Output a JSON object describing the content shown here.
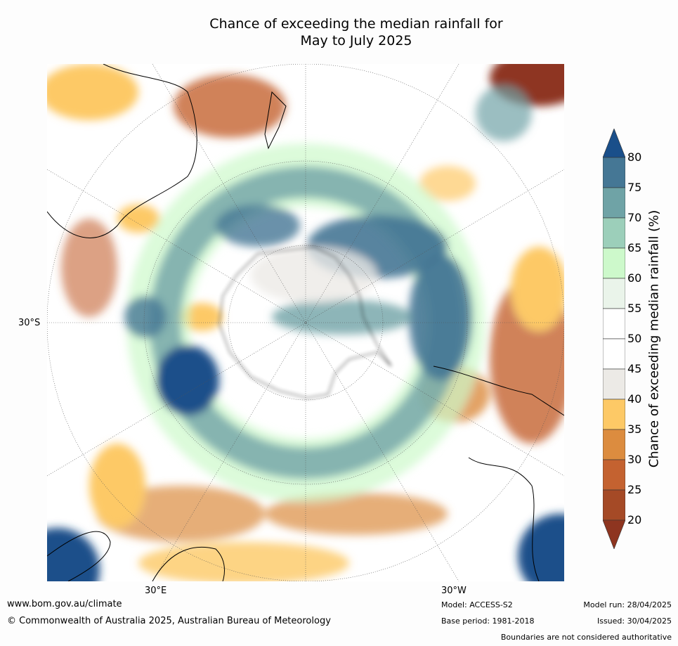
{
  "title_line1": "Chance of exceeding the median rainfall for",
  "title_line2": "May to July 2025",
  "labels": {
    "lat_30s": "30°S",
    "lon_30e": "30°E",
    "lon_30w": "30°W"
  },
  "colorbar": {
    "label": "Chance of exceeding median rainfall (%)",
    "ticks": [
      "80",
      "75",
      "70",
      "65",
      "60",
      "55",
      "50",
      "45",
      "40",
      "35",
      "30",
      "25",
      "20"
    ],
    "colors": [
      "#1a4f8a",
      "#457795",
      "#6fa3a6",
      "#9ccfba",
      "#cdf9cb",
      "#eaf4ea",
      "#ffffff",
      "#ffffff",
      "#eceae6",
      "#fdc966",
      "#dc8c3f",
      "#c46230",
      "#a54a26",
      "#8e3520"
    ]
  },
  "footer": {
    "website": "www.bom.gov.au/climate",
    "copyright": "© Commonwealth of Australia 2025, Australian Bureau of Meteorology",
    "model": "Model: ACCESS-S2",
    "base_period": "Base period: 1981-2018",
    "model_run": "Model run: 28/04/2025",
    "issued": "Issued: 30/04/2025",
    "disclaimer": "Boundaries are not considered authoritative"
  }
}
